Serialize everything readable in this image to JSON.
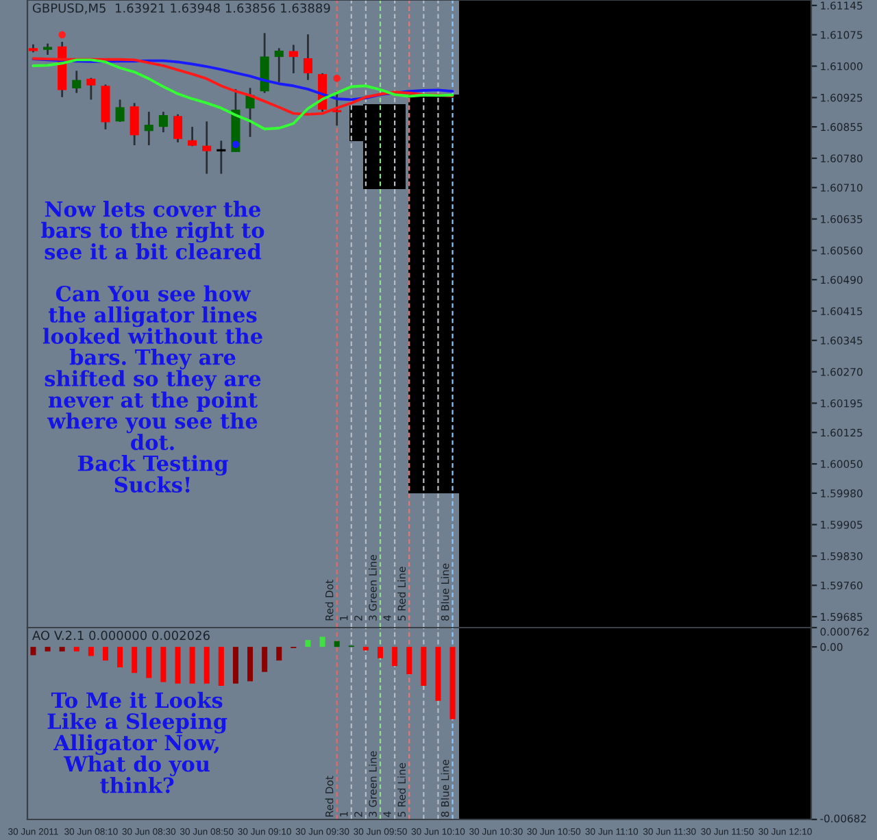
{
  "chart_data": [
    {
      "type": "candlestick",
      "title": "GBPUSD,M5  1.63921 1.63948 1.63856 1.63889",
      "x": [
        "2011-06-30T07:50",
        "2011-06-30T07:55",
        "2011-06-30T08:00",
        "2011-06-30T08:05",
        "2011-06-30T08:10",
        "2011-06-30T08:15",
        "2011-06-30T08:20",
        "2011-06-30T08:25",
        "2011-06-30T08:30",
        "2011-06-30T08:35",
        "2011-06-30T08:40",
        "2011-06-30T08:45",
        "2011-06-30T08:50",
        "2011-06-30T08:55",
        "2011-06-30T09:00",
        "2011-06-30T09:05",
        "2011-06-30T09:10",
        "2011-06-30T09:15",
        "2011-06-30T09:20",
        "2011-06-30T09:25",
        "2011-06-30T09:30",
        "2011-06-30T09:35"
      ],
      "ohlc": [
        [
          1.61043,
          1.61052,
          1.61033,
          1.61036
        ],
        [
          1.61039,
          1.61054,
          1.61027,
          1.61046
        ],
        [
          1.61047,
          1.61058,
          1.60926,
          1.60943
        ],
        [
          1.60947,
          1.60989,
          1.60936,
          1.60967
        ],
        [
          1.6097,
          1.60972,
          1.6092,
          1.60954
        ],
        [
          1.60953,
          1.60956,
          1.60849,
          1.60866
        ],
        [
          1.60868,
          1.6092,
          1.60867,
          1.60902
        ],
        [
          1.60904,
          1.60912,
          1.60811,
          1.60835
        ],
        [
          1.60845,
          1.60891,
          1.60811,
          1.6086
        ],
        [
          1.60855,
          1.60891,
          1.60842,
          1.60883
        ],
        [
          1.60881,
          1.60885,
          1.60818,
          1.60826
        ],
        [
          1.60823,
          1.60855,
          1.60809,
          1.6081
        ],
        [
          1.6081,
          1.60868,
          1.60743,
          1.60797
        ],
        [
          1.60799,
          1.60822,
          1.60743,
          1.60799
        ],
        [
          1.60795,
          1.60945,
          1.60795,
          1.60896
        ],
        [
          1.60899,
          1.60948,
          1.60831,
          1.60931
        ],
        [
          1.6094,
          1.61079,
          1.60936,
          1.61023
        ],
        [
          1.61022,
          1.61043,
          1.60962,
          1.61037
        ],
        [
          1.61036,
          1.61051,
          1.60983,
          1.61022
        ],
        [
          1.61019,
          1.61076,
          1.60967,
          1.60983
        ],
        [
          1.60981,
          1.60983,
          1.60891,
          1.60896
        ],
        [
          1.60895,
          1.6094,
          1.60858,
          1.6089
        ]
      ],
      "colors": [
        "#ff0000",
        "#006400",
        "#ff0000",
        "#006400",
        "#ff0000",
        "#ff0000",
        "#006400",
        "#ff0000",
        "#006400",
        "#006400",
        "#ff0000",
        "#ff0000",
        "#ff0000",
        "#000000",
        "#006400",
        "#006400",
        "#006400",
        "#006400",
        "#ff0000",
        "#ff0000",
        "#ff0000",
        "#ff0000"
      ],
      "series": [
        {
          "type": "line",
          "color": "#1a1aff",
          "x": [
            "2011-06-30T07:50",
            "2011-06-30T07:55",
            "2011-06-30T08:00",
            "2011-06-30T08:05",
            "2011-06-30T08:10",
            "2011-06-30T08:15",
            "2011-06-30T08:20",
            "2011-06-30T08:25",
            "2011-06-30T08:30",
            "2011-06-30T08:35",
            "2011-06-30T08:40",
            "2011-06-30T08:45",
            "2011-06-30T08:50",
            "2011-06-30T08:55",
            "2011-06-30T09:00",
            "2011-06-30T09:05",
            "2011-06-30T09:10",
            "2011-06-30T09:15",
            "2011-06-30T09:20",
            "2011-06-30T09:25",
            "2011-06-30T09:30",
            "2011-06-30T09:35",
            "2011-06-30T09:40",
            "2011-06-30T09:45",
            "2011-06-30T09:50",
            "2011-06-30T09:55",
            "2011-06-30T10:00",
            "2011-06-30T10:05",
            "2011-06-30T10:10",
            "2011-06-30T10:15"
          ],
          "values": [
            1.61017,
            1.61015,
            1.61013,
            1.61012,
            1.61011,
            1.61011,
            1.61012,
            1.61012,
            1.61013,
            1.61013,
            1.6101,
            1.61005,
            1.60999,
            1.60992,
            1.60984,
            1.60976,
            1.60966,
            1.60958,
            1.60953,
            1.60945,
            1.60933,
            1.60922,
            1.6092,
            1.60924,
            1.60932,
            1.60936,
            1.6094,
            1.60942,
            1.60943,
            1.6094
          ]
        },
        {
          "type": "line",
          "color": "#ff1a1a",
          "x": [
            "2011-06-30T07:50",
            "2011-06-30T07:55",
            "2011-06-30T08:00",
            "2011-06-30T08:05",
            "2011-06-30T08:10",
            "2011-06-30T08:15",
            "2011-06-30T08:20",
            "2011-06-30T08:25",
            "2011-06-30T08:30",
            "2011-06-30T08:35",
            "2011-06-30T08:40",
            "2011-06-30T08:45",
            "2011-06-30T08:50",
            "2011-06-30T08:55",
            "2011-06-30T09:00",
            "2011-06-30T09:05",
            "2011-06-30T09:10",
            "2011-06-30T09:15",
            "2011-06-30T09:20",
            "2011-06-30T09:25",
            "2011-06-30T09:30",
            "2011-06-30T09:35",
            "2011-06-30T09:40",
            "2011-06-30T09:45",
            "2011-06-30T09:50",
            "2011-06-30T09:55",
            "2011-06-30T10:00",
            "2011-06-30T10:05",
            "2011-06-30T10:10",
            "2011-06-30T10:15"
          ],
          "values": [
            1.61018,
            1.61017,
            1.61016,
            1.61016,
            1.61016,
            1.61016,
            1.61016,
            1.61015,
            1.61008,
            1.61001,
            1.60991,
            1.60981,
            1.6097,
            1.60953,
            1.6094,
            1.6093,
            1.60916,
            1.60902,
            1.60887,
            1.60885,
            1.60887,
            1.609,
            1.60912,
            1.60926,
            1.60933,
            1.60938,
            1.60936,
            1.60932,
            1.60931,
            1.60929
          ]
        },
        {
          "type": "line",
          "color": "#33ff33",
          "x": [
            "2011-06-30T07:50",
            "2011-06-30T07:55",
            "2011-06-30T08:00",
            "2011-06-30T08:05",
            "2011-06-30T08:10",
            "2011-06-30T08:15",
            "2011-06-30T08:20",
            "2011-06-30T08:25",
            "2011-06-30T08:30",
            "2011-06-30T08:35",
            "2011-06-30T08:40",
            "2011-06-30T08:45",
            "2011-06-30T08:50",
            "2011-06-30T08:55",
            "2011-06-30T09:00",
            "2011-06-30T09:05",
            "2011-06-30T09:10",
            "2011-06-30T09:15",
            "2011-06-30T09:20",
            "2011-06-30T09:25",
            "2011-06-30T09:30",
            "2011-06-30T09:35",
            "2011-06-30T09:40",
            "2011-06-30T09:45",
            "2011-06-30T09:50",
            "2011-06-30T09:55",
            "2011-06-30T10:00",
            "2011-06-30T10:05",
            "2011-06-30T10:10",
            "2011-06-30T10:15"
          ],
          "values": [
            1.61001,
            1.61002,
            1.61007,
            1.61015,
            1.61015,
            1.6101,
            1.60996,
            1.60986,
            1.6097,
            1.60951,
            1.60934,
            1.60922,
            1.60912,
            1.609,
            1.60883,
            1.60869,
            1.6085,
            1.60852,
            1.60863,
            1.60899,
            1.60921,
            1.60936,
            1.60951,
            1.60953,
            1.60944,
            1.60932,
            1.60928,
            1.60931,
            1.6093,
            1.60931
          ]
        },
        {
          "type": "scatter",
          "color": "#ff2020",
          "marker": "circle",
          "x": [
            "2011-06-30T08:00",
            "2011-06-30T09:35"
          ],
          "values": [
            1.61075,
            1.60971
          ]
        },
        {
          "type": "scatter",
          "color": "#1a1aff",
          "marker": "circle",
          "x": [
            "2011-06-30T09:00"
          ],
          "values": [
            1.60813
          ]
        }
      ],
      "xlim": [
        "2011-06-30T07:48",
        "2011-06-30T12:19"
      ],
      "ylim": [
        1.59659,
        1.61158
      ],
      "yticks": [
        1.61145,
        1.61075,
        {
          "value": 1.61,
          "label": "1.61000"
        },
        1.60925,
        1.60855,
        {
          "value": 1.6078,
          "label": "1.60780"
        },
        {
          "value": 1.6071,
          "label": "1.60710"
        },
        1.60635,
        {
          "value": 1.6056,
          "label": "1.60560"
        },
        {
          "value": 1.6049,
          "label": "1.60490"
        },
        1.60415,
        1.60345,
        {
          "value": 1.6027,
          "label": "1.60270"
        },
        1.60195,
        1.60125,
        {
          "value": 1.6005,
          "label": "1.60050"
        },
        {
          "value": 1.5998,
          "label": "1.59980"
        },
        1.59905,
        {
          "value": 1.5983,
          "label": "1.59830"
        },
        {
          "value": 1.5976,
          "label": "1.59760"
        },
        1.59685
      ],
      "tick_labels": "y",
      "ref_lines": [
        {
          "axis": "x",
          "value": "2011-06-30T09:35",
          "label": "Red Dot",
          "color": "#e06a6a",
          "line_style": "dashed"
        },
        {
          "axis": "x",
          "value": "2011-06-30T09:40",
          "label": "1",
          "color": "#b8bcc4",
          "line_style": "dashed"
        },
        {
          "axis": "x",
          "value": "2011-06-30T09:45",
          "label": "2",
          "color": "#b8bcc4",
          "line_style": "dashed"
        },
        {
          "axis": "x",
          "value": "2011-06-30T09:50",
          "label": "3 Green Line",
          "color": "#8fe08f",
          "line_style": "dashed"
        },
        {
          "axis": "x",
          "value": "2011-06-30T09:55",
          "label": "4",
          "color": "#b8bcc4",
          "line_style": "dashed"
        },
        {
          "axis": "x",
          "value": "2011-06-30T10:00",
          "label": "5 Red Line",
          "color": "#e07a7a",
          "line_style": "dashed"
        },
        {
          "axis": "x",
          "value": "2011-06-30T10:05",
          "label": null,
          "color": "#b8bcc4",
          "line_style": "dashed"
        },
        {
          "axis": "x",
          "value": "2011-06-30T10:10",
          "label": null,
          "color": "#b8bcc4",
          "line_style": "dashed"
        },
        {
          "axis": "x",
          "value": "2011-06-30T10:15",
          "label": "8 Blue Line",
          "color": "#8ec8ff",
          "line_style": "dashed"
        }
      ],
      "annotations": [
        "Now lets cover the\nbars to the right to\nsee it a bit cleared\n\nCan You see how\nthe alligator lines\nlooked without the\nbars. They are\nshifted so they are\nnever at the point\nwhere you see the\ndot.\nBack Testing\nSucks!"
      ]
    },
    {
      "type": "bar",
      "title": "AO V.2.1 0.000000 0.002026",
      "x": [
        "2011-06-30T07:50",
        "2011-06-30T07:55",
        "2011-06-30T08:00",
        "2011-06-30T08:05",
        "2011-06-30T08:10",
        "2011-06-30T08:15",
        "2011-06-30T08:20",
        "2011-06-30T08:25",
        "2011-06-30T08:30",
        "2011-06-30T08:35",
        "2011-06-30T08:40",
        "2011-06-30T08:45",
        "2011-06-30T08:50",
        "2011-06-30T08:55",
        "2011-06-30T09:00",
        "2011-06-30T09:05",
        "2011-06-30T09:10",
        "2011-06-30T09:15",
        "2011-06-30T09:20",
        "2011-06-30T09:25",
        "2011-06-30T09:30",
        "2011-06-30T09:35",
        "2011-06-30T09:40",
        "2011-06-30T09:45",
        "2011-06-30T09:50",
        "2011-06-30T09:55",
        "2011-06-30T10:00",
        "2011-06-30T10:05",
        "2011-06-30T10:10",
        "2011-06-30T10:15"
      ],
      "values": [
        -0.00033,
        -0.00018,
        -0.00018,
        -0.00018,
        -0.00036,
        -0.00054,
        -0.00081,
        -0.00103,
        -0.00123,
        -0.00139,
        -0.00145,
        -0.00145,
        -0.00145,
        -0.00154,
        -0.00145,
        -0.00136,
        -0.00099,
        -0.00054,
        -5e-05,
        0.00027,
        0.0004,
        0.00023,
        5e-05,
        -0.00014,
        -0.00045,
        -0.00076,
        -0.00108,
        -0.00154,
        -0.00213,
        -0.00286
      ],
      "colors": [
        "#8b0000",
        "#8b0000",
        "#8b0000",
        "#ff0000",
        "#ff0000",
        "#ff0000",
        "#ff0000",
        "#ff0000",
        "#ff0000",
        "#ff0000",
        "#ff0000",
        "#ff0000",
        "#ff0000",
        "#ff0000",
        "#8b0000",
        "#8b0000",
        "#8b0000",
        "#8b0000",
        "#8b0000",
        "#40e040",
        "#40e040",
        "#006400",
        "#006400",
        "#ff0000",
        "#ff0000",
        "#ff0000",
        "#ff0000",
        "#ff0000",
        "#ff0000",
        "#ff0000"
      ],
      "xlim": [
        "2011-06-30T07:48",
        "2011-06-30T12:19"
      ],
      "xticks": [
        {
          "value": "2011-06-30T07:50",
          "label": "30 Jun 2011"
        },
        {
          "value": "2011-06-30T08:10",
          "label": "30 Jun 08:10"
        },
        {
          "value": "2011-06-30T08:30",
          "label": "30 Jun 08:30"
        },
        {
          "value": "2011-06-30T08:50",
          "label": "30 Jun 08:50"
        },
        {
          "value": "2011-06-30T09:10",
          "label": "30 Jun 09:10"
        },
        {
          "value": "2011-06-30T09:30",
          "label": "30 Jun 09:30"
        },
        {
          "value": "2011-06-30T09:50",
          "label": "30 Jun 09:50"
        },
        {
          "value": "2011-06-30T10:10",
          "label": "30 Jun 10:10"
        },
        {
          "value": "2011-06-30T10:30",
          "label": "30 Jun 10:30"
        },
        {
          "value": "2011-06-30T10:50",
          "label": "30 Jun 10:50"
        },
        {
          "value": "2011-06-30T11:10",
          "label": "30 Jun 11:10"
        },
        {
          "value": "2011-06-30T11:30",
          "label": "30 Jun 11:30"
        },
        {
          "value": "2011-06-30T11:50",
          "label": "30 Jun 11:50"
        },
        {
          "value": "2011-06-30T12:10",
          "label": "30 Jun 12:10"
        }
      ],
      "ylim": [
        -0.00682,
        0.000762
      ],
      "yticks": [
        0.000762,
        {
          "value": 0,
          "label": "0.00"
        },
        -0.00682
      ],
      "ref_lines": [
        {
          "axis": "x",
          "value": "2011-06-30T09:35",
          "label": "Red Dot",
          "color": "#e06a6a",
          "line_style": "dashed"
        },
        {
          "axis": "x",
          "value": "2011-06-30T09:40",
          "label": "1",
          "color": "#b8bcc4",
          "line_style": "dashed"
        },
        {
          "axis": "x",
          "value": "2011-06-30T09:45",
          "label": "2",
          "color": "#b8bcc4",
          "line_style": "dashed"
        },
        {
          "axis": "x",
          "value": "2011-06-30T09:50",
          "label": "3 Green Line",
          "color": "#8fe08f",
          "line_style": "dashed"
        },
        {
          "axis": "x",
          "value": "2011-06-30T09:55",
          "label": "4",
          "color": "#b8bcc4",
          "line_style": "dashed"
        },
        {
          "axis": "x",
          "value": "2011-06-30T10:00",
          "label": "5 Red Line",
          "color": "#e07a7a",
          "line_style": "dashed"
        },
        {
          "axis": "x",
          "value": "2011-06-30T10:05",
          "label": null,
          "color": "#b8bcc4",
          "line_style": "dashed"
        },
        {
          "axis": "x",
          "value": "2011-06-30T10:10",
          "label": null,
          "color": "#b8bcc4",
          "line_style": "dashed"
        },
        {
          "axis": "x",
          "value": "2011-06-30T10:15",
          "label": "8 Blue Line",
          "color": "#8ec8ff",
          "line_style": "dashed"
        }
      ],
      "annotations": [
        "To Me it Looks\nLike a Sleeping\nAlligator Now,\nWhat do you\nthink?"
      ]
    }
  ]
}
